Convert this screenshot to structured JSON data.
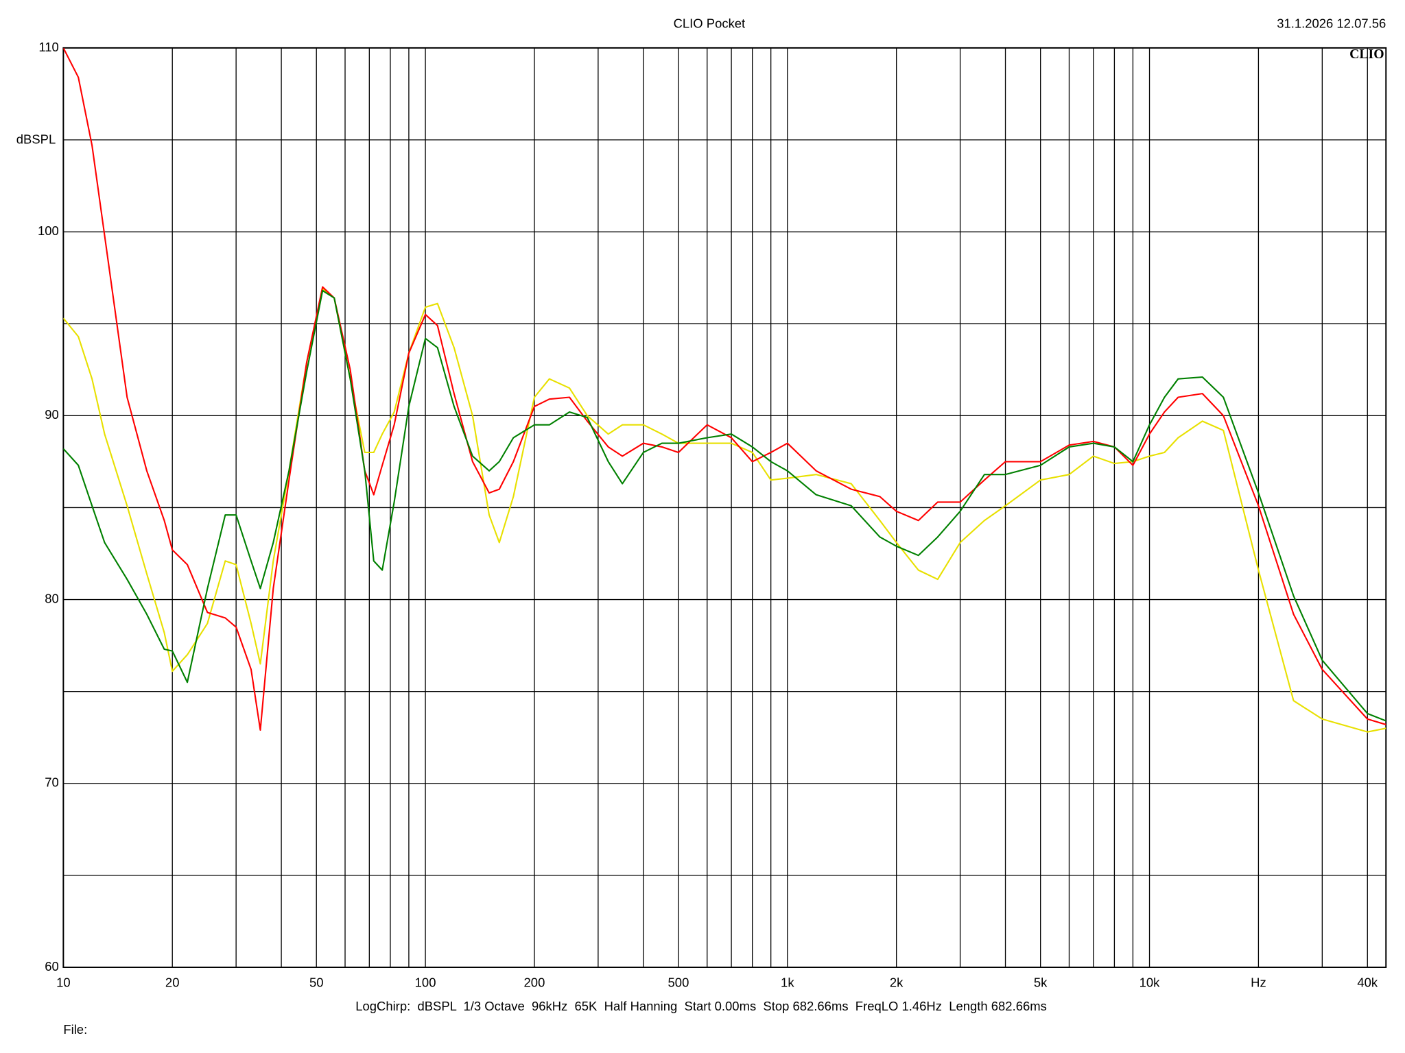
{
  "title": "CLIO Pocket",
  "timestamp": "31.1.2026 12.07.56",
  "logo": "CLIO",
  "settings": "LogChirp:  dBSPL  1/3 Octave  96kHz  65K  Half Hanning  Start 0.00ms  Stop 682.66ms  FreqLO 1.46Hz  Length 682.66ms",
  "file_label": "File:",
  "chart_data": {
    "type": "line",
    "y_label": "dBSPL",
    "x_scale": "log",
    "grid": true,
    "xlim": [
      10,
      45000
    ],
    "ylim": [
      60,
      110
    ],
    "xticks": [
      10,
      20,
      50,
      100,
      200,
      500,
      {
        "value": 1000,
        "label": "1k"
      },
      {
        "value": 2000,
        "label": "2k"
      },
      {
        "value": 5000,
        "label": "5k"
      },
      {
        "value": 10000,
        "label": "10k"
      },
      {
        "value": 20000,
        "label": "Hz"
      },
      {
        "value": 40000,
        "label": "40k"
      }
    ],
    "xgrid_minor": [
      30,
      40,
      60,
      70,
      80,
      90,
      300,
      400,
      600,
      700,
      800,
      900,
      3000,
      4000,
      6000,
      7000,
      8000,
      9000,
      30000
    ],
    "yticks": [
      60,
      70,
      80,
      90,
      100,
      110
    ],
    "ygrid_minor": [
      65,
      75,
      85,
      95,
      105
    ],
    "x": [
      10,
      11,
      12,
      13,
      15,
      17,
      19,
      20,
      22,
      25,
      28,
      30,
      33,
      35,
      38,
      42,
      47,
      52,
      56,
      62,
      68,
      72,
      76,
      82,
      90,
      100,
      108,
      120,
      135,
      150,
      160,
      175,
      200,
      220,
      250,
      280,
      320,
      350,
      400,
      450,
      500,
      600,
      700,
      800,
      900,
      1000,
      1200,
      1500,
      1800,
      2000,
      2300,
      2600,
      3000,
      3500,
      4000,
      5000,
      6000,
      7000,
      8000,
      9000,
      10000,
      11000,
      12000,
      14000,
      16000,
      20000,
      25000,
      30000,
      40000,
      45000
    ],
    "series": [
      {
        "color": "#e8e000",
        "values": [
          95.3,
          94.3,
          92,
          89,
          85.1,
          81.4,
          78.2,
          76.1,
          77,
          78.7,
          82.1,
          81.9,
          78.7,
          76.5,
          82.1,
          87,
          92.9,
          96.9,
          96.4,
          92,
          88,
          88,
          89,
          90.2,
          93.4,
          95.9,
          96.1,
          93.7,
          90,
          84.6,
          83.1,
          85.6,
          91,
          92,
          91.5,
          90,
          89,
          89.5,
          89.5,
          89,
          88.5,
          88.5,
          88.5,
          88,
          86.5,
          86.6,
          86.8,
          86.3,
          84.3,
          83.1,
          81.6,
          81.1,
          83.1,
          84.3,
          85.1,
          86.5,
          86.8,
          87.8,
          87.4,
          87.5,
          87.8,
          88,
          88.8,
          89.7,
          89.2,
          81.6,
          74.5,
          73.5,
          72.8,
          73
        ]
      },
      {
        "color": "#ff0000",
        "values": [
          110,
          108.4,
          104.7,
          99.8,
          91,
          87,
          84.3,
          82.7,
          81.9,
          79.3,
          79,
          78.5,
          76.2,
          72.9,
          80.6,
          86.5,
          92.9,
          97,
          96.4,
          92.5,
          87,
          85.7,
          87.3,
          89.5,
          93.4,
          95.5,
          94.9,
          91.2,
          87.5,
          85.8,
          86,
          87.5,
          90.5,
          90.9,
          91,
          89.7,
          88.3,
          87.8,
          88.5,
          88.3,
          88,
          89.5,
          88.8,
          87.5,
          88,
          88.5,
          87,
          86,
          85.6,
          84.8,
          84.3,
          85.3,
          85.3,
          86.5,
          87.5,
          87.5,
          88.4,
          88.6,
          88.3,
          87.3,
          89,
          90.2,
          91,
          91.2,
          90,
          85.1,
          79.2,
          76.2,
          73.5,
          73.2
        ]
      },
      {
        "color": "#008000",
        "values": [
          88.2,
          87.3,
          85.1,
          83.1,
          81.1,
          79.2,
          77.3,
          77.2,
          75.5,
          80.6,
          84.6,
          84.6,
          82.1,
          80.6,
          83.1,
          87,
          92.4,
          96.8,
          96.4,
          92,
          87,
          82.1,
          81.6,
          85.3,
          90.5,
          94.2,
          93.7,
          90.5,
          87.8,
          87,
          87.5,
          88.8,
          89.5,
          89.5,
          90.2,
          89.9,
          87.5,
          86.3,
          88,
          88.5,
          88.5,
          88.8,
          89,
          88.3,
          87.5,
          87,
          85.7,
          85.1,
          83.4,
          82.9,
          82.4,
          83.4,
          84.8,
          86.8,
          86.8,
          87.3,
          88.3,
          88.5,
          88.3,
          87.5,
          89.5,
          91,
          92,
          92.1,
          91,
          85.8,
          80.2,
          76.7,
          73.8,
          73.4
        ]
      }
    ]
  }
}
